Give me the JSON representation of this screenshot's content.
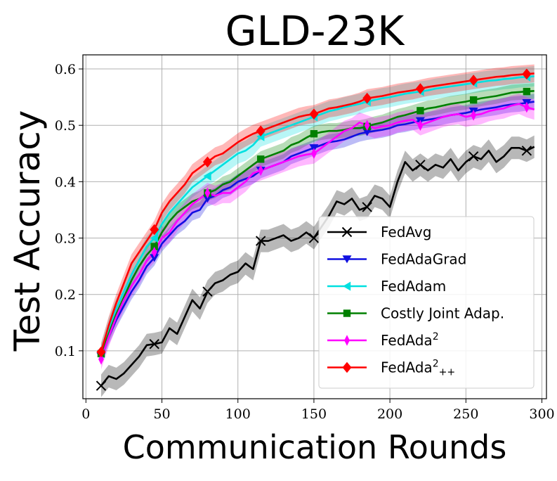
{
  "chart_data": {
    "type": "line",
    "title": "GLD-23K",
    "xlabel": "Communication Rounds",
    "ylabel": "Test Accuracy",
    "xlim": [
      -2,
      303
    ],
    "ylim": [
      0.015,
      0.625
    ],
    "xticks": [
      0,
      50,
      100,
      150,
      200,
      250,
      300
    ],
    "xtick_labels": [
      "0",
      "50",
      "100",
      "150",
      "200",
      "250",
      "300"
    ],
    "yticks": [
      0.1,
      0.2,
      0.3,
      0.4,
      0.5,
      0.6
    ],
    "ytick_labels": [
      "0.1",
      "0.2",
      "0.3",
      "0.4",
      "0.5",
      "0.6"
    ],
    "grid": true,
    "legend_position": "bottom-right",
    "x": [
      10,
      15,
      20,
      25,
      30,
      35,
      40,
      45,
      50,
      55,
      60,
      65,
      70,
      75,
      80,
      85,
      90,
      95,
      100,
      105,
      110,
      115,
      120,
      125,
      130,
      135,
      140,
      145,
      150,
      155,
      160,
      165,
      170,
      175,
      180,
      185,
      190,
      195,
      200,
      205,
      210,
      215,
      220,
      225,
      230,
      235,
      240,
      245,
      250,
      255,
      260,
      265,
      270,
      275,
      280,
      285,
      290,
      295
    ],
    "series": [
      {
        "name": "FedAvg",
        "color": "#000000",
        "marker": "x",
        "band": 0.02,
        "marker_x": [
          10,
          45,
          80,
          115,
          150,
          185,
          220,
          255,
          290
        ],
        "values": [
          0.038,
          0.055,
          0.05,
          0.06,
          0.075,
          0.09,
          0.11,
          0.112,
          0.115,
          0.14,
          0.13,
          0.16,
          0.19,
          0.175,
          0.205,
          0.22,
          0.225,
          0.235,
          0.24,
          0.255,
          0.245,
          0.295,
          0.295,
          0.3,
          0.305,
          0.295,
          0.3,
          0.31,
          0.3,
          0.32,
          0.34,
          0.365,
          0.36,
          0.37,
          0.35,
          0.355,
          0.375,
          0.37,
          0.355,
          0.4,
          0.435,
          0.42,
          0.43,
          0.42,
          0.43,
          0.425,
          0.44,
          0.42,
          0.435,
          0.445,
          0.44,
          0.455,
          0.435,
          0.445,
          0.46,
          0.46,
          0.455,
          0.462
        ]
      },
      {
        "name": "FedAdaGrad",
        "color": "#1010e0",
        "marker": "triangle-down",
        "band": 0.014,
        "marker_x": [
          10,
          45,
          80,
          115,
          150,
          185,
          220,
          255,
          290
        ],
        "values": [
          0.09,
          0.125,
          0.155,
          0.18,
          0.205,
          0.225,
          0.25,
          0.265,
          0.29,
          0.305,
          0.32,
          0.33,
          0.345,
          0.35,
          0.37,
          0.375,
          0.385,
          0.39,
          0.4,
          0.405,
          0.41,
          0.42,
          0.425,
          0.43,
          0.435,
          0.445,
          0.45,
          0.455,
          0.46,
          0.465,
          0.47,
          0.472,
          0.475,
          0.48,
          0.485,
          0.488,
          0.49,
          0.492,
          0.495,
          0.5,
          0.502,
          0.505,
          0.508,
          0.51,
          0.512,
          0.515,
          0.518,
          0.52,
          0.522,
          0.525,
          0.528,
          0.53,
          0.532,
          0.535,
          0.537,
          0.538,
          0.54,
          0.542
        ]
      },
      {
        "name": "FedAdam",
        "color": "#00e0e0",
        "marker": "triangle-left",
        "band": 0.018,
        "marker_x": [
          10,
          45,
          80,
          115,
          150,
          185,
          220,
          255,
          290
        ],
        "values": [
          0.095,
          0.14,
          0.175,
          0.205,
          0.235,
          0.26,
          0.285,
          0.3,
          0.325,
          0.345,
          0.36,
          0.375,
          0.39,
          0.4,
          0.41,
          0.42,
          0.43,
          0.44,
          0.45,
          0.455,
          0.465,
          0.48,
          0.485,
          0.49,
          0.495,
          0.5,
          0.505,
          0.51,
          0.515,
          0.52,
          0.525,
          0.528,
          0.532,
          0.535,
          0.538,
          0.542,
          0.545,
          0.548,
          0.55,
          0.553,
          0.556,
          0.558,
          0.56,
          0.562,
          0.565,
          0.567,
          0.569,
          0.571,
          0.573,
          0.575,
          0.577,
          0.579,
          0.58,
          0.582,
          0.583,
          0.585,
          0.586,
          0.587
        ]
      },
      {
        "name": "Costly Joint Adap.",
        "color": "#008000",
        "marker": "square",
        "band": 0.014,
        "marker_x": [
          10,
          45,
          80,
          115,
          150,
          185,
          220,
          255,
          290
        ],
        "values": [
          0.095,
          0.13,
          0.165,
          0.195,
          0.225,
          0.25,
          0.27,
          0.285,
          0.31,
          0.33,
          0.345,
          0.355,
          0.365,
          0.37,
          0.38,
          0.385,
          0.395,
          0.4,
          0.41,
          0.42,
          0.43,
          0.44,
          0.445,
          0.45,
          0.455,
          0.465,
          0.47,
          0.478,
          0.485,
          0.488,
          0.49,
          0.49,
          0.492,
          0.495,
          0.495,
          0.498,
          0.502,
          0.505,
          0.51,
          0.515,
          0.518,
          0.522,
          0.526,
          0.53,
          0.532,
          0.535,
          0.538,
          0.54,
          0.542,
          0.545,
          0.548,
          0.55,
          0.552,
          0.555,
          0.558,
          0.559,
          0.56,
          0.561
        ]
      },
      {
        "name": "FedAda$^2$",
        "color": "#ff00ff",
        "marker": "diamond-thin",
        "band": 0.018,
        "marker_x": [
          10,
          45,
          80,
          115,
          150,
          185,
          220,
          255,
          290
        ],
        "values": [
          0.085,
          0.125,
          0.16,
          0.19,
          0.215,
          0.235,
          0.26,
          0.275,
          0.3,
          0.31,
          0.33,
          0.345,
          0.36,
          0.37,
          0.38,
          0.375,
          0.38,
          0.38,
          0.39,
          0.4,
          0.415,
          0.42,
          0.425,
          0.43,
          0.435,
          0.44,
          0.445,
          0.448,
          0.45,
          0.46,
          0.47,
          0.48,
          0.49,
          0.495,
          0.505,
          0.5,
          0.495,
          0.498,
          0.5,
          0.505,
          0.508,
          0.51,
          0.5,
          0.505,
          0.51,
          0.515,
          0.518,
          0.52,
          0.515,
          0.518,
          0.52,
          0.525,
          0.528,
          0.53,
          0.535,
          0.538,
          0.532,
          0.528
        ]
      },
      {
        "name": "FedAda$^2$$_{++}$",
        "color": "#ff0000",
        "marker": "diamond",
        "band": 0.016,
        "marker_x": [
          10,
          45,
          80,
          115,
          150,
          185,
          220,
          255,
          290
        ],
        "values": [
          0.098,
          0.145,
          0.185,
          0.22,
          0.255,
          0.275,
          0.295,
          0.315,
          0.345,
          0.365,
          0.38,
          0.395,
          0.415,
          0.425,
          0.435,
          0.445,
          0.45,
          0.46,
          0.47,
          0.478,
          0.485,
          0.49,
          0.495,
          0.5,
          0.505,
          0.51,
          0.515,
          0.518,
          0.52,
          0.525,
          0.53,
          0.532,
          0.535,
          0.538,
          0.542,
          0.548,
          0.55,
          0.552,
          0.555,
          0.558,
          0.56,
          0.562,
          0.565,
          0.568,
          0.57,
          0.572,
          0.574,
          0.576,
          0.578,
          0.58,
          0.582,
          0.584,
          0.586,
          0.587,
          0.589,
          0.59,
          0.591,
          0.592
        ]
      }
    ]
  }
}
